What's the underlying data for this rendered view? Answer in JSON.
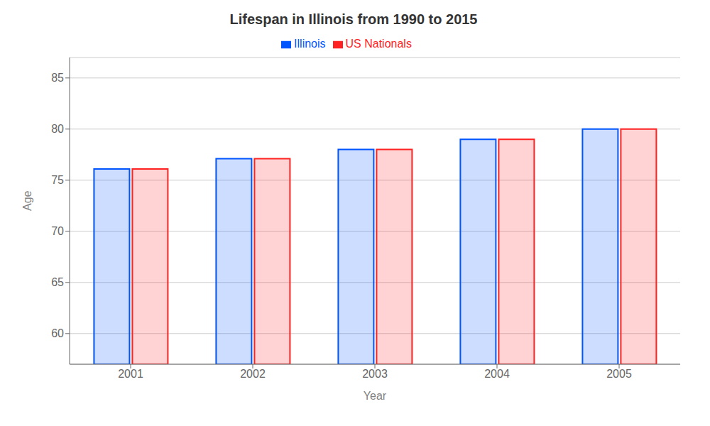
{
  "chart_data": {
    "type": "bar",
    "title": "Lifespan in Illinois from 1990 to 2015",
    "x_label": "Year",
    "y_label": "Age",
    "categories": [
      "2001",
      "2002",
      "2003",
      "2004",
      "2005"
    ],
    "series": [
      {
        "name": "Illinois",
        "color": "#0055ff",
        "values": [
          76.1,
          77.1,
          78.0,
          79.0,
          80.0
        ]
      },
      {
        "name": "US Nationals",
        "color": "#ff2222",
        "values": [
          76.1,
          77.1,
          78.0,
          79.0,
          80.0
        ]
      }
    ],
    "ylim": [
      57,
      87
    ],
    "yticks": [
      60,
      65,
      70,
      75,
      80,
      85
    ],
    "grid": true,
    "legend": "top"
  }
}
